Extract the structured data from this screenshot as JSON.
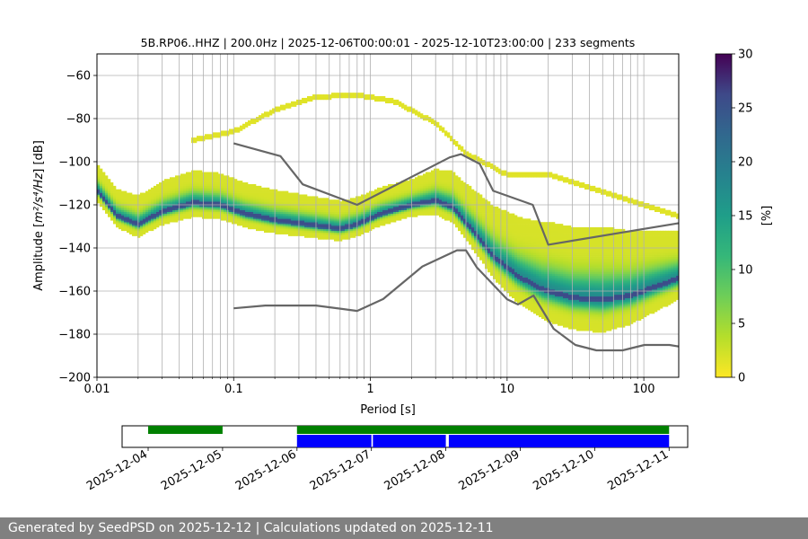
{
  "chart_data": {
    "type": "heatmap",
    "title": "5B.RP06..HHZ | 200.0Hz | 2025-12-06T00:00:01 - 2025-12-10T23:00:00 | 233 segments",
    "xlabel": "Period [s]",
    "ylabel_prefix": "Amplitude [",
    "ylabel_units": "m²/s⁴/Hz",
    "ylabel_suffix": "] [dB]",
    "x_scale": "log",
    "xlim": [
      0.01,
      180
    ],
    "ylim": [
      -200,
      -50
    ],
    "x_ticks": [
      {
        "value": 0.01,
        "label": "0.01"
      },
      {
        "value": 0.1,
        "label": "0.1"
      },
      {
        "value": 1,
        "label": "1"
      },
      {
        "value": 10,
        "label": "10"
      },
      {
        "value": 100,
        "label": "100"
      }
    ],
    "y_ticks": [
      {
        "value": -60,
        "label": "−60"
      },
      {
        "value": -80,
        "label": "−80"
      },
      {
        "value": -100,
        "label": "−100"
      },
      {
        "value": -120,
        "label": "−120"
      },
      {
        "value": -140,
        "label": "−140"
      },
      {
        "value": -160,
        "label": "−160"
      },
      {
        "value": -180,
        "label": "−180"
      },
      {
        "value": -200,
        "label": "−200"
      }
    ],
    "colorbar": {
      "label": "[%]",
      "range": [
        0,
        30
      ],
      "ticks": [
        {
          "value": 0,
          "label": "0"
        },
        {
          "value": 5,
          "label": "5"
        },
        {
          "value": 10,
          "label": "10"
        },
        {
          "value": 15,
          "label": "15"
        },
        {
          "value": 20,
          "label": "20"
        },
        {
          "value": 25,
          "label": "25"
        },
        {
          "value": 30,
          "label": "30"
        }
      ],
      "colormap": "viridis_r"
    },
    "psd_mode": [
      [
        0.01,
        -113
      ],
      [
        0.014,
        -125
      ],
      [
        0.02,
        -129
      ],
      [
        0.03,
        -123
      ],
      [
        0.05,
        -119
      ],
      [
        0.08,
        -120
      ],
      [
        0.12,
        -124
      ],
      [
        0.2,
        -127
      ],
      [
        0.35,
        -129
      ],
      [
        0.6,
        -131
      ],
      [
        0.8,
        -129
      ],
      [
        1.2,
        -124
      ],
      [
        2,
        -120
      ],
      [
        3,
        -118
      ],
      [
        4,
        -121
      ],
      [
        6,
        -134
      ],
      [
        8,
        -144
      ],
      [
        12,
        -153
      ],
      [
        18,
        -159
      ],
      [
        30,
        -163
      ],
      [
        50,
        -164
      ],
      [
        80,
        -162
      ],
      [
        120,
        -158
      ],
      [
        180,
        -154
      ]
    ],
    "psd_spread": [
      [
        0.01,
        12
      ],
      [
        0.05,
        15
      ],
      [
        0.2,
        14
      ],
      [
        0.5,
        13
      ],
      [
        2,
        12
      ],
      [
        5,
        18
      ],
      [
        10,
        26
      ],
      [
        20,
        32
      ],
      [
        50,
        34
      ],
      [
        100,
        28
      ],
      [
        180,
        22
      ]
    ],
    "upper_band": [
      [
        0.05,
        -90
      ],
      [
        0.1,
        -86
      ],
      [
        0.2,
        -76
      ],
      [
        0.4,
        -70
      ],
      [
        0.8,
        -69
      ],
      [
        1.5,
        -72
      ],
      [
        3,
        -82
      ],
      [
        5,
        -96
      ],
      [
        10,
        -106
      ],
      [
        20,
        -106
      ],
      [
        40,
        -112
      ],
      [
        100,
        -120
      ],
      [
        180,
        -125
      ]
    ],
    "noise_models": [
      {
        "name": "NHNM",
        "points": [
          [
            0.1,
            -91.5
          ],
          [
            0.22,
            -97.4
          ],
          [
            0.32,
            -110.5
          ],
          [
            0.8,
            -120
          ],
          [
            3.8,
            -98
          ],
          [
            4.6,
            -96.5
          ],
          [
            6.3,
            -101
          ],
          [
            7.9,
            -113.5
          ],
          [
            15.4,
            -120
          ],
          [
            20,
            -138.5
          ],
          [
            180,
            -128.5
          ]
        ]
      },
      {
        "name": "NLNM",
        "points": [
          [
            0.1,
            -168
          ],
          [
            0.17,
            -166.7
          ],
          [
            0.4,
            -166.7
          ],
          [
            0.8,
            -169.2
          ],
          [
            1.24,
            -163.7
          ],
          [
            2.4,
            -148.6
          ],
          [
            4.3,
            -141.1
          ],
          [
            5,
            -141.1
          ],
          [
            6,
            -149
          ],
          [
            10,
            -163.8
          ],
          [
            12,
            -166.2
          ],
          [
            15.6,
            -162.1
          ],
          [
            21.9,
            -177.5
          ],
          [
            31.6,
            -185
          ],
          [
            45,
            -187.5
          ],
          [
            70,
            -187.5
          ],
          [
            101,
            -185
          ],
          [
            154,
            -185
          ],
          [
            180,
            -185.7
          ]
        ]
      }
    ],
    "timeline": {
      "date_labels": [
        "2025-12-04",
        "2025-12-05",
        "2025-12-06",
        "2025-12-07",
        "2025-12-08",
        "2025-12-09",
        "2025-12-10",
        "2025-12-11"
      ],
      "xlim_days": [
        -0.35,
        7.25
      ],
      "data_spans": [
        [
          0,
          1
        ],
        [
          2,
          7
        ]
      ],
      "psd_spans": [
        [
          2,
          3
        ],
        [
          3.02,
          4
        ],
        [
          4.04,
          7
        ]
      ],
      "data_color": "#008000",
      "psd_color": "#0000ff"
    }
  },
  "footer": {
    "text": "Generated by SeedPSD on 2025-12-12 | Calculations updated on 2025-12-11"
  }
}
